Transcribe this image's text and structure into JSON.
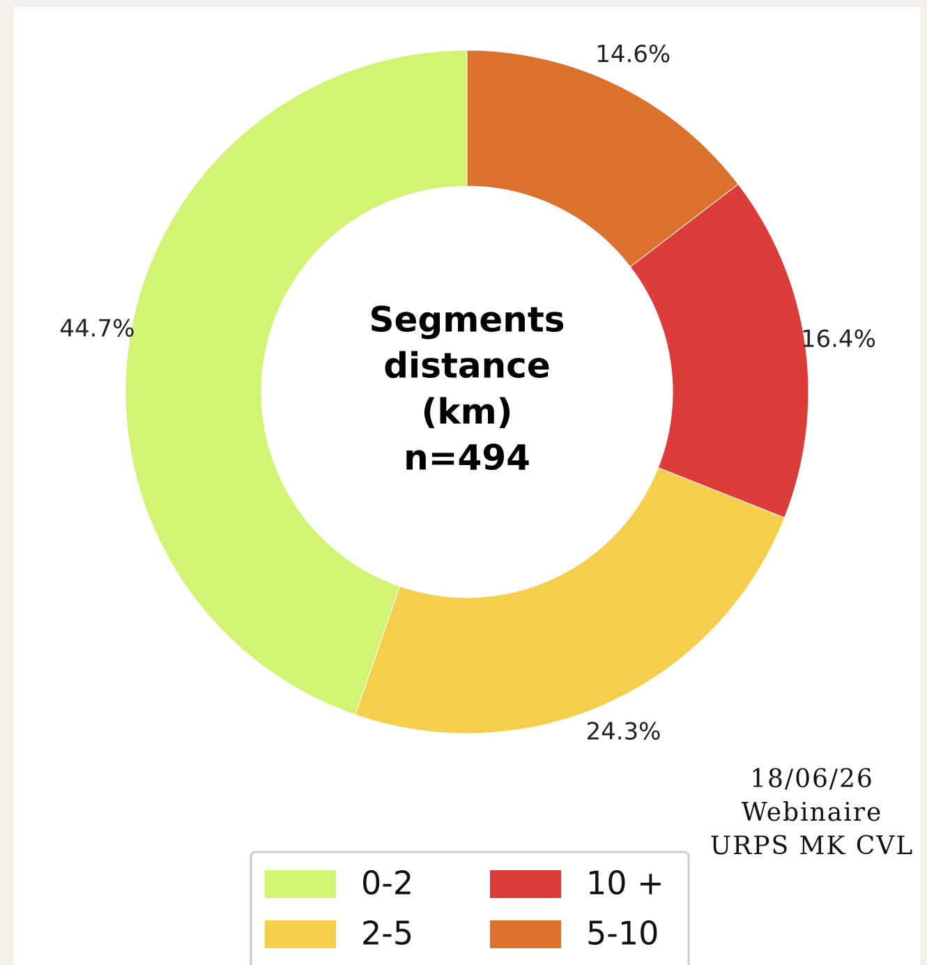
{
  "chart_data": {
    "type": "donut",
    "center_text": [
      "Segments",
      "distance",
      "(km)",
      "n=494"
    ],
    "categories": [
      "0-2",
      "2-5",
      "10 +",
      "5-10"
    ],
    "values": [
      44.7,
      24.3,
      16.4,
      14.6
    ],
    "value_labels": [
      "44.7%",
      "24.3%",
      "16.4%",
      "14.6%"
    ],
    "colors": [
      "#d1f572",
      "#f5cf4b",
      "#dc3c3a",
      "#dc712d"
    ],
    "annotation": [
      "18/06/26",
      "Webinaire",
      "URPS MK CVL"
    ]
  }
}
